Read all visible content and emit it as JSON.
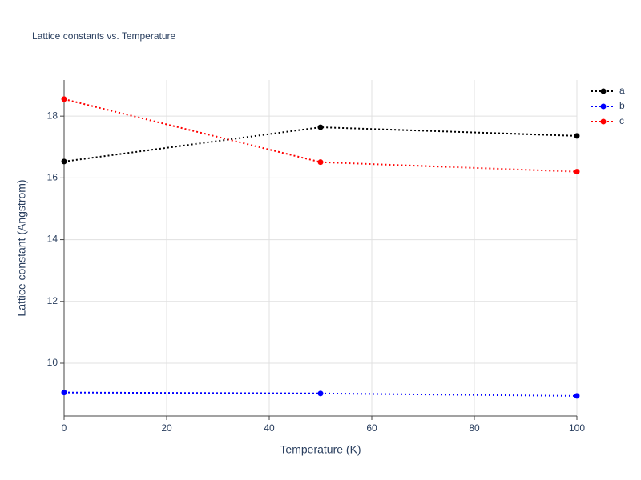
{
  "chart_data": {
    "type": "line",
    "title": "Lattice constants vs. Temperature",
    "x_label": "Temperature (K)",
    "y_label": "Lattice constant (Angstrom)",
    "x": [
      0,
      50,
      100
    ],
    "series": [
      {
        "name": "a",
        "color": "#000000",
        "values": [
          16.53,
          17.64,
          17.36
        ]
      },
      {
        "name": "b",
        "color": "#0000ff",
        "values": [
          9.05,
          9.02,
          8.94
        ]
      },
      {
        "name": "c",
        "color": "#ff0000",
        "values": [
          18.55,
          16.51,
          16.2
        ]
      }
    ],
    "xlim": [
      0,
      100
    ],
    "xticks": [
      0,
      20,
      40,
      60,
      80,
      100
    ],
    "ylim": [
      8.29,
      19.17
    ],
    "yticks": [
      10,
      12,
      14,
      16,
      18
    ],
    "grid": true,
    "legend": "top-right"
  }
}
